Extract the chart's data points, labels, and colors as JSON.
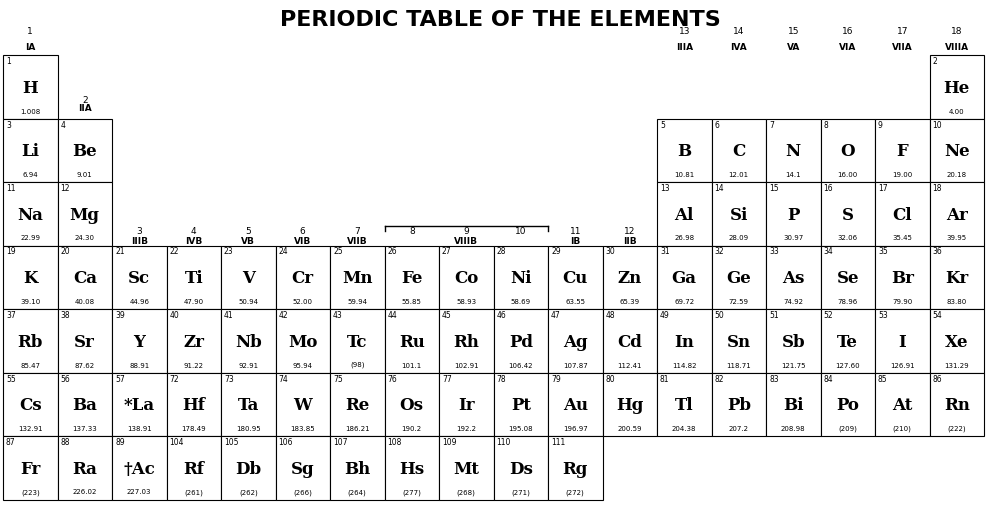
{
  "title": "PERIODIC TABLE OF THE ELEMENTS",
  "background_color": "#ffffff",
  "border_color": "#000000",
  "text_color": "#000000",
  "elements": [
    {
      "symbol": "H",
      "number": 1,
      "mass": "1.008",
      "col": 1,
      "row": 1
    },
    {
      "symbol": "He",
      "number": 2,
      "mass": "4.00",
      "col": 18,
      "row": 1
    },
    {
      "symbol": "Li",
      "number": 3,
      "mass": "6.94",
      "col": 1,
      "row": 2
    },
    {
      "symbol": "Be",
      "number": 4,
      "mass": "9.01",
      "col": 2,
      "row": 2
    },
    {
      "symbol": "B",
      "number": 5,
      "mass": "10.81",
      "col": 13,
      "row": 2
    },
    {
      "symbol": "C",
      "number": 6,
      "mass": "12.01",
      "col": 14,
      "row": 2
    },
    {
      "symbol": "N",
      "number": 7,
      "mass": "14.1",
      "col": 15,
      "row": 2
    },
    {
      "symbol": "O",
      "number": 8,
      "mass": "16.00",
      "col": 16,
      "row": 2
    },
    {
      "symbol": "F",
      "number": 9,
      "mass": "19.00",
      "col": 17,
      "row": 2
    },
    {
      "symbol": "Ne",
      "number": 10,
      "mass": "20.18",
      "col": 18,
      "row": 2
    },
    {
      "symbol": "Na",
      "number": 11,
      "mass": "22.99",
      "col": 1,
      "row": 3
    },
    {
      "symbol": "Mg",
      "number": 12,
      "mass": "24.30",
      "col": 2,
      "row": 3
    },
    {
      "symbol": "Al",
      "number": 13,
      "mass": "26.98",
      "col": 13,
      "row": 3
    },
    {
      "symbol": "Si",
      "number": 14,
      "mass": "28.09",
      "col": 14,
      "row": 3
    },
    {
      "symbol": "P",
      "number": 15,
      "mass": "30.97",
      "col": 15,
      "row": 3
    },
    {
      "symbol": "S",
      "number": 16,
      "mass": "32.06",
      "col": 16,
      "row": 3
    },
    {
      "symbol": "Cl",
      "number": 17,
      "mass": "35.45",
      "col": 17,
      "row": 3
    },
    {
      "symbol": "Ar",
      "number": 18,
      "mass": "39.95",
      "col": 18,
      "row": 3
    },
    {
      "symbol": "K",
      "number": 19,
      "mass": "39.10",
      "col": 1,
      "row": 4
    },
    {
      "symbol": "Ca",
      "number": 20,
      "mass": "40.08",
      "col": 2,
      "row": 4
    },
    {
      "symbol": "Sc",
      "number": 21,
      "mass": "44.96",
      "col": 3,
      "row": 4
    },
    {
      "symbol": "Ti",
      "number": 22,
      "mass": "47.90",
      "col": 4,
      "row": 4
    },
    {
      "symbol": "V",
      "number": 23,
      "mass": "50.94",
      "col": 5,
      "row": 4
    },
    {
      "symbol": "Cr",
      "number": 24,
      "mass": "52.00",
      "col": 6,
      "row": 4
    },
    {
      "symbol": "Mn",
      "number": 25,
      "mass": "59.94",
      "col": 7,
      "row": 4
    },
    {
      "symbol": "Fe",
      "number": 26,
      "mass": "55.85",
      "col": 8,
      "row": 4
    },
    {
      "symbol": "Co",
      "number": 27,
      "mass": "58.93",
      "col": 9,
      "row": 4
    },
    {
      "symbol": "Ni",
      "number": 28,
      "mass": "58.69",
      "col": 10,
      "row": 4
    },
    {
      "symbol": "Cu",
      "number": 29,
      "mass": "63.55",
      "col": 11,
      "row": 4
    },
    {
      "symbol": "Zn",
      "number": 30,
      "mass": "65.39",
      "col": 12,
      "row": 4
    },
    {
      "symbol": "Ga",
      "number": 31,
      "mass": "69.72",
      "col": 13,
      "row": 4
    },
    {
      "symbol": "Ge",
      "number": 32,
      "mass": "72.59",
      "col": 14,
      "row": 4
    },
    {
      "symbol": "As",
      "number": 33,
      "mass": "74.92",
      "col": 15,
      "row": 4
    },
    {
      "symbol": "Se",
      "number": 34,
      "mass": "78.96",
      "col": 16,
      "row": 4
    },
    {
      "symbol": "Br",
      "number": 35,
      "mass": "79.90",
      "col": 17,
      "row": 4
    },
    {
      "symbol": "Kr",
      "number": 36,
      "mass": "83.80",
      "col": 18,
      "row": 4
    },
    {
      "symbol": "Rb",
      "number": 37,
      "mass": "85.47",
      "col": 1,
      "row": 5
    },
    {
      "symbol": "Sr",
      "number": 38,
      "mass": "87.62",
      "col": 2,
      "row": 5
    },
    {
      "symbol": "Y",
      "number": 39,
      "mass": "88.91",
      "col": 3,
      "row": 5
    },
    {
      "symbol": "Zr",
      "number": 40,
      "mass": "91.22",
      "col": 4,
      "row": 5
    },
    {
      "symbol": "Nb",
      "number": 41,
      "mass": "92.91",
      "col": 5,
      "row": 5
    },
    {
      "symbol": "Mo",
      "number": 42,
      "mass": "95.94",
      "col": 6,
      "row": 5
    },
    {
      "symbol": "Tc",
      "number": 43,
      "mass": "(98)",
      "col": 7,
      "row": 5
    },
    {
      "symbol": "Ru",
      "number": 44,
      "mass": "101.1",
      "col": 8,
      "row": 5
    },
    {
      "symbol": "Rh",
      "number": 45,
      "mass": "102.91",
      "col": 9,
      "row": 5
    },
    {
      "symbol": "Pd",
      "number": 46,
      "mass": "106.42",
      "col": 10,
      "row": 5
    },
    {
      "symbol": "Ag",
      "number": 47,
      "mass": "107.87",
      "col": 11,
      "row": 5
    },
    {
      "symbol": "Cd",
      "number": 48,
      "mass": "112.41",
      "col": 12,
      "row": 5
    },
    {
      "symbol": "In",
      "number": 49,
      "mass": "114.82",
      "col": 13,
      "row": 5
    },
    {
      "symbol": "Sn",
      "number": 50,
      "mass": "118.71",
      "col": 14,
      "row": 5
    },
    {
      "symbol": "Sb",
      "number": 51,
      "mass": "121.75",
      "col": 15,
      "row": 5
    },
    {
      "symbol": "Te",
      "number": 52,
      "mass": "127.60",
      "col": 16,
      "row": 5
    },
    {
      "symbol": "I",
      "number": 53,
      "mass": "126.91",
      "col": 17,
      "row": 5
    },
    {
      "symbol": "Xe",
      "number": 54,
      "mass": "131.29",
      "col": 18,
      "row": 5
    },
    {
      "symbol": "Cs",
      "number": 55,
      "mass": "132.91",
      "col": 1,
      "row": 6
    },
    {
      "symbol": "Ba",
      "number": 56,
      "mass": "137.33",
      "col": 2,
      "row": 6
    },
    {
      "symbol": "*La",
      "number": 57,
      "mass": "138.91",
      "col": 3,
      "row": 6
    },
    {
      "symbol": "Hf",
      "number": 72,
      "mass": "178.49",
      "col": 4,
      "row": 6
    },
    {
      "symbol": "Ta",
      "number": 73,
      "mass": "180.95",
      "col": 5,
      "row": 6
    },
    {
      "symbol": "W",
      "number": 74,
      "mass": "183.85",
      "col": 6,
      "row": 6
    },
    {
      "symbol": "Re",
      "number": 75,
      "mass": "186.21",
      "col": 7,
      "row": 6
    },
    {
      "symbol": "Os",
      "number": 76,
      "mass": "190.2",
      "col": 8,
      "row": 6
    },
    {
      "symbol": "Ir",
      "number": 77,
      "mass": "192.2",
      "col": 9,
      "row": 6
    },
    {
      "symbol": "Pt",
      "number": 78,
      "mass": "195.08",
      "col": 10,
      "row": 6
    },
    {
      "symbol": "Au",
      "number": 79,
      "mass": "196.97",
      "col": 11,
      "row": 6
    },
    {
      "symbol": "Hg",
      "number": 80,
      "mass": "200.59",
      "col": 12,
      "row": 6
    },
    {
      "symbol": "Tl",
      "number": 81,
      "mass": "204.38",
      "col": 13,
      "row": 6
    },
    {
      "symbol": "Pb",
      "number": 82,
      "mass": "207.2",
      "col": 14,
      "row": 6
    },
    {
      "symbol": "Bi",
      "number": 83,
      "mass": "208.98",
      "col": 15,
      "row": 6
    },
    {
      "symbol": "Po",
      "number": 84,
      "mass": "(209)",
      "col": 16,
      "row": 6
    },
    {
      "symbol": "At",
      "number": 85,
      "mass": "(210)",
      "col": 17,
      "row": 6
    },
    {
      "symbol": "Rn",
      "number": 86,
      "mass": "(222)",
      "col": 18,
      "row": 6
    },
    {
      "symbol": "Fr",
      "number": 87,
      "mass": "(223)",
      "col": 1,
      "row": 7
    },
    {
      "symbol": "Ra",
      "number": 88,
      "mass": "226.02",
      "col": 2,
      "row": 7
    },
    {
      "symbol": "†Ac",
      "number": 89,
      "mass": "227.03",
      "col": 3,
      "row": 7
    },
    {
      "symbol": "Rf",
      "number": 104,
      "mass": "(261)",
      "col": 4,
      "row": 7
    },
    {
      "symbol": "Db",
      "number": 105,
      "mass": "(262)",
      "col": 5,
      "row": 7
    },
    {
      "symbol": "Sg",
      "number": 106,
      "mass": "(266)",
      "col": 6,
      "row": 7
    },
    {
      "symbol": "Bh",
      "number": 107,
      "mass": "(264)",
      "col": 7,
      "row": 7
    },
    {
      "symbol": "Hs",
      "number": 108,
      "mass": "(277)",
      "col": 8,
      "row": 7
    },
    {
      "symbol": "Mt",
      "number": 109,
      "mass": "(268)",
      "col": 9,
      "row": 7
    },
    {
      "symbol": "Ds",
      "number": 110,
      "mass": "(271)",
      "col": 10,
      "row": 7
    },
    {
      "symbol": "Rg",
      "number": 111,
      "mass": "(272)",
      "col": 11,
      "row": 7
    }
  ],
  "group_labels_top": [
    {
      "num": "1",
      "name": "IA",
      "col": 1
    },
    {
      "num": "13",
      "name": "IIIA",
      "col": 13
    },
    {
      "num": "14",
      "name": "IVA",
      "col": 14
    },
    {
      "num": "15",
      "name": "VA",
      "col": 15
    },
    {
      "num": "16",
      "name": "VIA",
      "col": 16
    },
    {
      "num": "17",
      "name": "VIIA",
      "col": 17
    },
    {
      "num": "18",
      "name": "VIIIA",
      "col": 18
    }
  ],
  "group_labels_iia": {
    "num": "2",
    "name": "IIA",
    "col": 2
  },
  "group_labels_mid": [
    {
      "num": "3",
      "name": "IIIB",
      "col": 3
    },
    {
      "num": "4",
      "name": "IVB",
      "col": 4
    },
    {
      "num": "5",
      "name": "VB",
      "col": 5
    },
    {
      "num": "6",
      "name": "VIB",
      "col": 6
    },
    {
      "num": "7",
      "name": "VIIB",
      "col": 7
    },
    {
      "num": "8",
      "name": "",
      "col": 8
    },
    {
      "num": "9",
      "name": "VIIIB",
      "col": 9
    },
    {
      "num": "10",
      "name": "",
      "col": 10
    },
    {
      "num": "11",
      "name": "IB",
      "col": 11
    },
    {
      "num": "12",
      "name": "IIB",
      "col": 12
    }
  ],
  "figsize": [
    10.0,
    5.25
  ],
  "dpi": 100
}
